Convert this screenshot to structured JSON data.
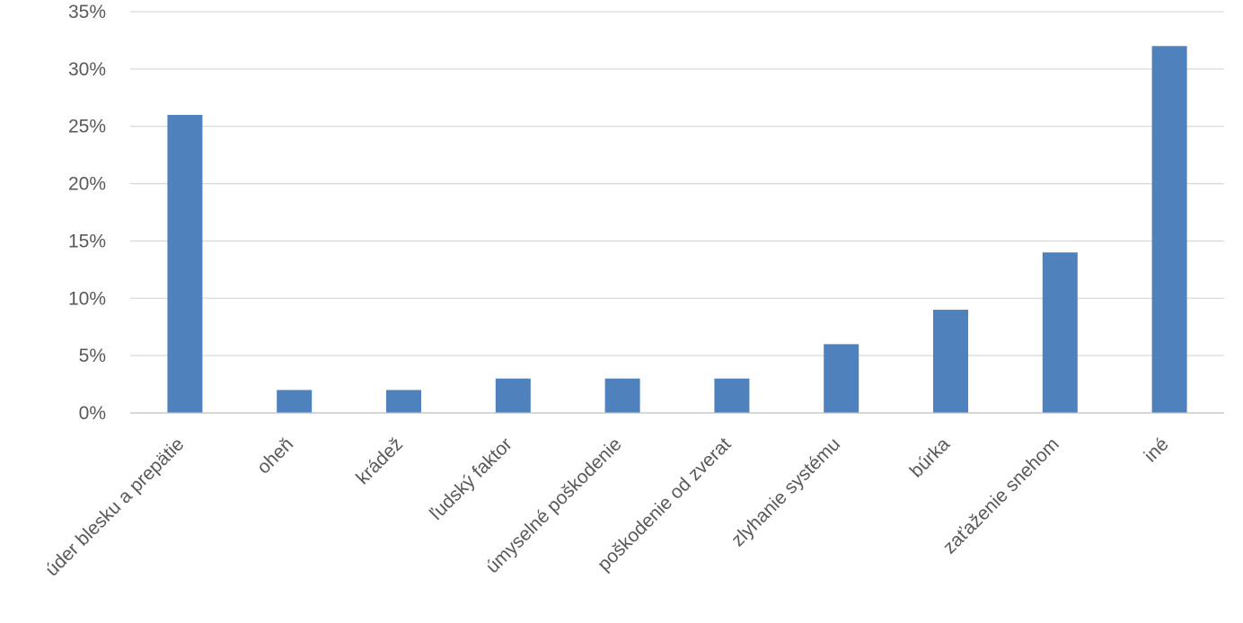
{
  "chart_data": {
    "type": "bar",
    "categories": [
      "úder blesku a prepätie",
      "oheň",
      "krádež",
      "ľudský faktor",
      "úmyselné poškodenie",
      "poškodenie od zverat",
      "zlyhanie systému",
      "búrka",
      "zaťaženie snehom",
      "iné"
    ],
    "values": [
      26,
      2,
      2,
      3,
      3,
      3,
      6,
      9,
      14,
      32
    ],
    "value_unit": "%",
    "ylim": [
      0,
      35
    ],
    "yticks": [
      "0%",
      "5%",
      "10%",
      "15%",
      "20%",
      "25%",
      "30%",
      "35%"
    ],
    "gridlines": true,
    "legend": "none",
    "bar_color": "#4f81bd"
  }
}
